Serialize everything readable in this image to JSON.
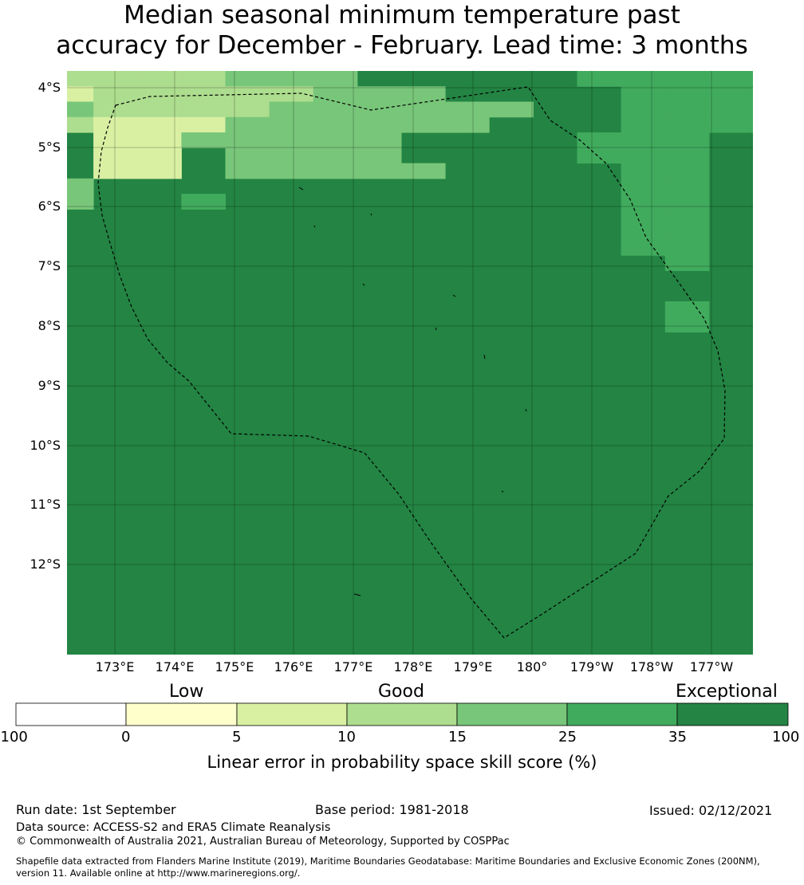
{
  "title": {
    "line1": "Median seasonal minimum temperature past",
    "line2": "accuracy for December - February. Lead time: 3 months"
  },
  "map": {
    "lat_labels": [
      "4°S",
      "5°S",
      "6°S",
      "7°S",
      "8°S",
      "9°S",
      "10°S",
      "11°S",
      "12°S"
    ],
    "lon_labels": [
      "173°E",
      "174°E",
      "175°E",
      "176°E",
      "177°E",
      "178°E",
      "179°E",
      "180°",
      "179°W",
      "178°W",
      "177°W"
    ],
    "boundary": "dashed EEZ outline",
    "grid_codes": [
      "3333444555556666",
      "2333334445555666",
      "4333344444455666",
      "3222444444555666",
      "5224444455556665",
      "5225444455556665",
      "5225444445555665",
      "4555555555555665",
      "4556555555555665",
      "5555555555555665",
      "5555555555555665",
      "5555555555555665",
      "5555555555555565",
      "5555555555555555",
      "5555555555555555",
      "5555555555555565",
      "5555555555555565",
      "5555555555555555",
      "5555555555555555",
      "5555555555555555",
      "5555555555555555",
      "5555555555555555",
      "5555555555555555",
      "5555555555555555",
      "5555555555555555",
      "5555555555555555",
      "5555555555555555",
      "5555555555555555",
      "5555555555555555",
      "5555555555555555",
      "5555555555555555",
      "5555555555555555",
      "5555555555555555",
      "5555555555555555",
      "5555555555555555",
      "5555555555555555",
      "5555555555555555",
      "5555555555555555"
    ]
  },
  "legend": {
    "categories": [
      "Low",
      "Good",
      "Exceptional"
    ],
    "ticks": [
      "-100",
      "0",
      "5",
      "10",
      "15",
      "25",
      "35",
      "100"
    ],
    "colors": [
      "#ffffff",
      "#ffffcc",
      "#d9f0a3",
      "#addd8e",
      "#78c679",
      "#41ab5d",
      "#238443"
    ],
    "title": "Linear error in probability space skill score (%)"
  },
  "footer": {
    "run_date": "Run date: 1st September",
    "base_period": "Base period: 1981-2018",
    "issued": "Issued: 02/12/2021",
    "data_source": "Data source: ACCESS-S2 and ERA5 Climate Reanalysis",
    "copyright": "© Commonwealth of Australia 2021, Australian Bureau of Meteorology, Supported by COSPPac",
    "shapefile_line1": "Shapefile data extracted from Flanders Marine Institute (2019), Maritime Boundaries Geodatabase: Maritime Boundaries and Exclusive Economic Zones (200NM),",
    "shapefile_line2": "version 11. Available online at http://www.marineregions.org/."
  }
}
